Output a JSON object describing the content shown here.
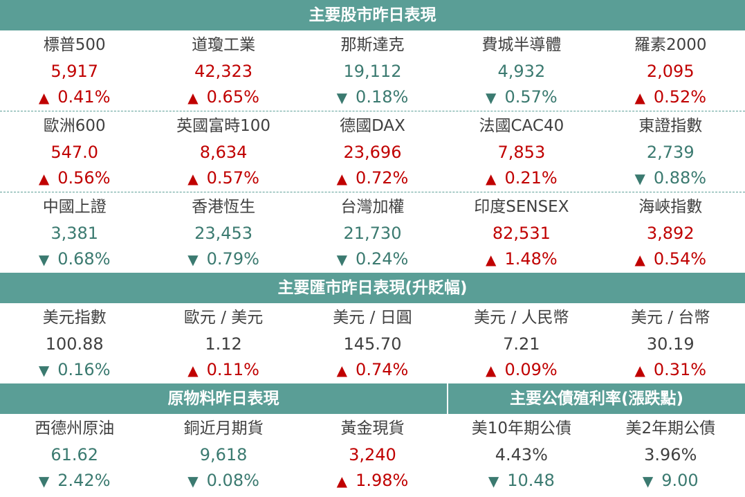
{
  "stocks": {
    "title": "主要股市昨日表現",
    "rows": [
      [
        {
          "name": "標普500",
          "value": "5,917",
          "change": "0.41%",
          "dir": "up"
        },
        {
          "name": "道瓊工業",
          "value": "42,323",
          "change": "0.65%",
          "dir": "up"
        },
        {
          "name": "那斯達克",
          "value": "19,112",
          "change": "0.18%",
          "dir": "down"
        },
        {
          "name": "費城半導體",
          "value": "4,932",
          "change": "0.57%",
          "dir": "down"
        },
        {
          "name": "羅素2000",
          "value": "2,095",
          "change": "0.52%",
          "dir": "up"
        }
      ],
      [
        {
          "name": "歐洲600",
          "value": "547.0",
          "change": "0.56%",
          "dir": "up"
        },
        {
          "name": "英國富時100",
          "value": "8,634",
          "change": "0.57%",
          "dir": "up"
        },
        {
          "name": "德國DAX",
          "value": "23,696",
          "change": "0.72%",
          "dir": "up"
        },
        {
          "name": "法國CAC40",
          "value": "7,853",
          "change": "0.21%",
          "dir": "up"
        },
        {
          "name": "東證指數",
          "value": "2,739",
          "change": "0.88%",
          "dir": "down"
        }
      ],
      [
        {
          "name": "中國上證",
          "value": "3,381",
          "change": "0.68%",
          "dir": "down"
        },
        {
          "name": "香港恆生",
          "value": "23,453",
          "change": "0.79%",
          "dir": "down"
        },
        {
          "name": "台灣加權",
          "value": "21,730",
          "change": "0.24%",
          "dir": "down"
        },
        {
          "name": "印度SENSEX",
          "value": "82,531",
          "change": "1.48%",
          "dir": "up"
        },
        {
          "name": "海峽指數",
          "value": "3,892",
          "change": "0.54%",
          "dir": "up"
        }
      ]
    ]
  },
  "fx": {
    "title": "主要匯市昨日表現(升貶幅)",
    "rows": [
      [
        {
          "name": "美元指數",
          "value": "100.88",
          "change": "0.16%",
          "dir": "down"
        },
        {
          "name": "歐元 / 美元",
          "value": "1.12",
          "change": "0.11%",
          "dir": "up"
        },
        {
          "name": "美元 / 日圓",
          "value": "145.70",
          "change": "0.74%",
          "dir": "up"
        },
        {
          "name": "美元 / 人民幣",
          "value": "7.21",
          "change": "0.09%",
          "dir": "up"
        },
        {
          "name": "美元 / 台幣",
          "value": "30.19",
          "change": "0.31%",
          "dir": "up"
        }
      ]
    ]
  },
  "commodities": {
    "title": "原物料昨日表現",
    "items": [
      {
        "name": "西德州原油",
        "value": "61.62",
        "change": "2.42%",
        "dir": "down"
      },
      {
        "name": "銅近月期貨",
        "value": "9,618",
        "change": "0.08%",
        "dir": "down"
      },
      {
        "name": "黃金現貨",
        "value": "3,240",
        "change": "1.98%",
        "dir": "up"
      }
    ]
  },
  "bonds": {
    "title": "主要公債殖利率(漲跌點)",
    "items": [
      {
        "name": "美10年期公債",
        "value": "4.43%",
        "change": "10.48",
        "dir": "down"
      },
      {
        "name": "美2年期公債",
        "value": "3.96%",
        "change": "9.00",
        "dir": "down"
      }
    ]
  },
  "arrows": {
    "up": "▲",
    "down": "▼"
  },
  "colors": {
    "header_bg": "#5a9e96",
    "up": "#c00000",
    "down": "#3b7a70"
  }
}
